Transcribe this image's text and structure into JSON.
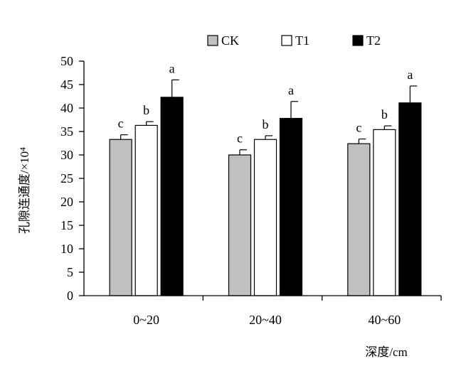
{
  "chart_data": {
    "type": "bar",
    "categories": [
      "0~20",
      "20~40",
      "40~60"
    ],
    "series": [
      {
        "name": "CK",
        "color": "#c0c0c0",
        "values": [
          33.3,
          30.0,
          32.4
        ],
        "errors": [
          1.0,
          1.1,
          1.0
        ],
        "labels": [
          "c",
          "c",
          "c"
        ]
      },
      {
        "name": "T1",
        "color": "#ffffff",
        "values": [
          36.3,
          33.3,
          35.4
        ],
        "errors": [
          0.8,
          0.8,
          0.8
        ],
        "labels": [
          "b",
          "b",
          "b"
        ]
      },
      {
        "name": "T2",
        "color": "#000000",
        "values": [
          42.3,
          37.8,
          41.1
        ],
        "errors": [
          3.7,
          3.6,
          3.6
        ],
        "labels": [
          "a",
          "a",
          "a"
        ]
      }
    ],
    "ylabel": "孔隙连通度/×10⁴",
    "xlabel": "深度/cm",
    "ylim": [
      0,
      50
    ],
    "yticks": [
      0,
      5,
      10,
      15,
      20,
      25,
      30,
      35,
      40,
      45,
      50
    ],
    "grid": false,
    "legend": "top"
  }
}
